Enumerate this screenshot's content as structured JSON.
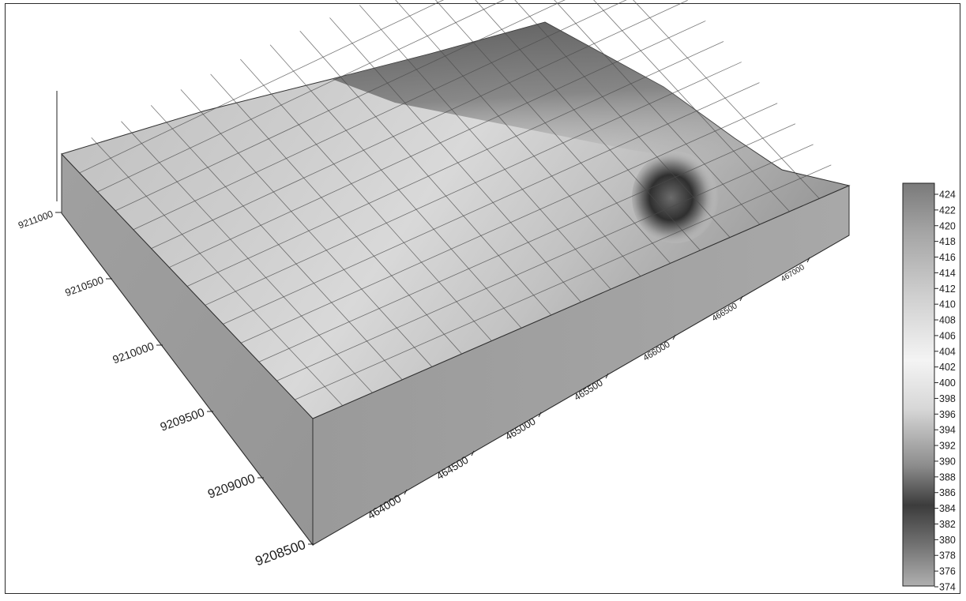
{
  "figure": {
    "x_axis": {
      "tick_labels": [
        "464000",
        "464500",
        "465000",
        "465500",
        "466000",
        "466500",
        "467000"
      ]
    },
    "y_axis": {
      "tick_labels": [
        "9208500",
        "9209000",
        "9209500",
        "9210000",
        "9210500",
        "9211000"
      ]
    },
    "colorbar": {
      "tick_labels": [
        "424",
        "422",
        "420",
        "418",
        "416",
        "414",
        "412",
        "410",
        "408",
        "406",
        "404",
        "402",
        "400",
        "398",
        "396",
        "394",
        "392",
        "390",
        "388",
        "386",
        "384",
        "382",
        "380",
        "378",
        "376",
        "374"
      ],
      "min": 374,
      "max": 424,
      "colormap": "grayscale"
    }
  }
}
